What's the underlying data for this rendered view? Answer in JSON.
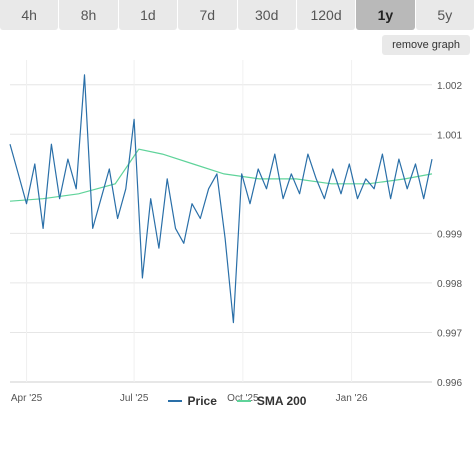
{
  "tabs": [
    {
      "label": "4h",
      "active": false
    },
    {
      "label": "8h",
      "active": false
    },
    {
      "label": "1d",
      "active": false
    },
    {
      "label": "7d",
      "active": false
    },
    {
      "label": "30d",
      "active": false
    },
    {
      "label": "120d",
      "active": false
    },
    {
      "label": "1y",
      "active": true
    },
    {
      "label": "5y",
      "active": false
    }
  ],
  "remove_graph_label": "remove graph",
  "colors": {
    "price": "#2a6fa8",
    "sma": "#5fd39a",
    "grid": "#e6e6e6",
    "tab_bg": "#e9e9e9",
    "tab_active_bg": "#b9b9b9"
  },
  "chart_data": {
    "type": "line",
    "x_ticks": [
      "Apr '25",
      "Jul '25",
      "Oct '25",
      "Jan '26"
    ],
    "y_ticks": [
      "1.002",
      "1.001",
      "0.999",
      "0.998",
      "0.997",
      "0.996"
    ],
    "ylim": [
      0.996,
      1.0025
    ],
    "grid": true,
    "legend_position": "bottom-center",
    "series": [
      {
        "name": "Price",
        "x": [
          "2025-03-18",
          "2025-03-25",
          "2025-04-01",
          "2025-04-08",
          "2025-04-15",
          "2025-04-22",
          "2025-04-29",
          "2025-05-06",
          "2025-05-13",
          "2025-05-20",
          "2025-05-27",
          "2025-06-03",
          "2025-06-10",
          "2025-06-17",
          "2025-06-24",
          "2025-07-01",
          "2025-07-08",
          "2025-07-15",
          "2025-07-22",
          "2025-07-29",
          "2025-08-05",
          "2025-08-12",
          "2025-08-19",
          "2025-08-26",
          "2025-09-02",
          "2025-09-09",
          "2025-09-16",
          "2025-09-23",
          "2025-09-30",
          "2025-10-07",
          "2025-10-14",
          "2025-10-21",
          "2025-10-28",
          "2025-11-04",
          "2025-11-11",
          "2025-11-18",
          "2025-11-25",
          "2025-12-02",
          "2025-12-09",
          "2025-12-16",
          "2025-12-23",
          "2025-12-30",
          "2026-01-06",
          "2026-01-13",
          "2026-01-20",
          "2026-01-27",
          "2026-02-03",
          "2026-02-10",
          "2026-02-17",
          "2026-02-24",
          "2026-03-03",
          "2026-03-10"
        ],
        "values": [
          1.0008,
          1.0002,
          0.9996,
          1.0004,
          0.9991,
          1.0008,
          0.9997,
          1.0005,
          0.9999,
          1.0022,
          0.9991,
          0.9997,
          1.0003,
          0.9993,
          0.9999,
          1.0013,
          0.9981,
          0.9997,
          0.9987,
          1.0001,
          0.9991,
          0.9988,
          0.9996,
          0.9993,
          0.9999,
          1.0002,
          0.9989,
          0.9972,
          1.0002,
          0.9996,
          1.0003,
          0.9999,
          1.0006,
          0.9997,
          1.0002,
          0.9998,
          1.0006,
          1.0001,
          0.9997,
          1.0003,
          0.9998,
          1.0004,
          0.9997,
          1.0001,
          0.9999,
          1.0006,
          0.9997,
          1.0005,
          0.9999,
          1.0004,
          0.9997,
          1.0005
        ]
      },
      {
        "name": "SMA 200",
        "x": [
          "2025-03-18",
          "2025-04-15",
          "2025-05-15",
          "2025-06-15",
          "2025-07-05",
          "2025-07-25",
          "2025-08-20",
          "2025-09-15",
          "2025-10-15",
          "2025-11-15",
          "2025-12-15",
          "2026-01-15",
          "2026-02-15",
          "2026-03-10"
        ],
        "values": [
          0.99965,
          0.9997,
          0.9998,
          1.0,
          1.0007,
          1.0006,
          1.0004,
          1.0002,
          1.0001,
          1.0001,
          1.0,
          1.0,
          1.0001,
          1.0002
        ]
      }
    ]
  }
}
